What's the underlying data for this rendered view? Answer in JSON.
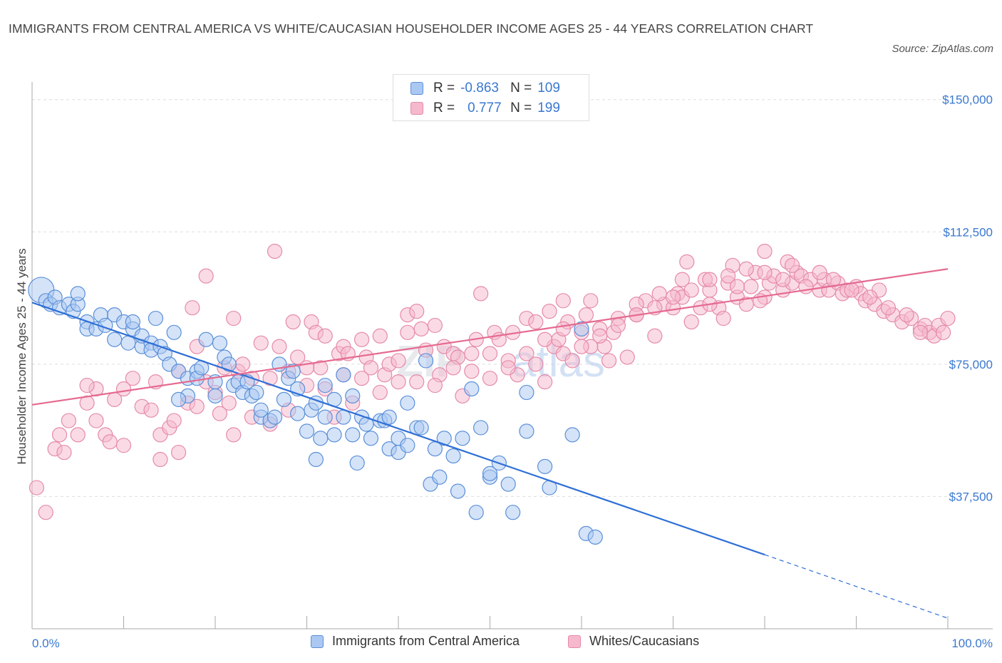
{
  "header": {
    "title": "IMMIGRANTS FROM CENTRAL AMERICA VS WHITE/CAUCASIAN HOUSEHOLDER INCOME AGES 25 - 44 YEARS CORRELATION CHART",
    "source": "Source: ZipAtlas.com"
  },
  "legend": {
    "r_label": "R =",
    "n_label": "N =",
    "blue": {
      "r": "-0.863",
      "n": "109"
    },
    "pink": {
      "r": "0.777",
      "n": "199"
    }
  },
  "watermark": {
    "zip": "ZIP",
    "atlas": "atlas"
  },
  "colors": {
    "blue_fill": "#aac8f2",
    "blue_stroke": "#5a8fd8",
    "blue_line": "#2f6fd6",
    "pink_fill": "#f6b8cc",
    "pink_stroke": "#e58aa8",
    "pink_line": "#e56a90",
    "tick_label": "#3a78d0",
    "grid": "#dddddd"
  },
  "chart_data": {
    "type": "scatter",
    "title": "IMMIGRANTS FROM CENTRAL AMERICA VS WHITE/CAUCASIAN HOUSEHOLDER INCOME AGES 25 - 44 YEARS CORRELATION CHART",
    "xlabel": "",
    "ylabel": "Householder Income Ages 25 - 44 years",
    "xlim": [
      0,
      100
    ],
    "ylim": [
      0,
      155000
    ],
    "x_tick_labels": [
      "0.0%",
      "100.0%"
    ],
    "y_ticks": [
      37500,
      75000,
      112500,
      150000
    ],
    "y_tick_labels": [
      "$37,500",
      "$75,000",
      "$112,500",
      "$150,000"
    ],
    "legend_position": "top-center",
    "series": [
      {
        "name": "Immigrants from Central America",
        "color": "#aac8f2",
        "r": -0.863,
        "n": 109,
        "trend": {
          "x0": 0,
          "y0": 92500,
          "x1": 80,
          "y1": 21000,
          "dash_to_x": 100,
          "dash_to_y": 3000
        },
        "points": [
          [
            1,
            96
          ],
          [
            1.5,
            93
          ],
          [
            2,
            92
          ],
          [
            2.5,
            94
          ],
          [
            3,
            91
          ],
          [
            4,
            92
          ],
          [
            4.5,
            90
          ],
          [
            5,
            92
          ],
          [
            5,
            95
          ],
          [
            6,
            87
          ],
          [
            6,
            85
          ],
          [
            7,
            85
          ],
          [
            7.5,
            89
          ],
          [
            8,
            86
          ],
          [
            9,
            89
          ],
          [
            9,
            82
          ],
          [
            10,
            87
          ],
          [
            10.5,
            81
          ],
          [
            11,
            85
          ],
          [
            11,
            87
          ],
          [
            12,
            80
          ],
          [
            12,
            83
          ],
          [
            13,
            81
          ],
          [
            13.5,
            88
          ],
          [
            13,
            79
          ],
          [
            14,
            80
          ],
          [
            14.5,
            78
          ],
          [
            15,
            75
          ],
          [
            15.5,
            84
          ],
          [
            16,
            73
          ],
          [
            17,
            71
          ],
          [
            17,
            66
          ],
          [
            18,
            73
          ],
          [
            18,
            71
          ],
          [
            18.5,
            74
          ],
          [
            19,
            82
          ],
          [
            20,
            70
          ],
          [
            20,
            66
          ],
          [
            20.5,
            81
          ],
          [
            21,
            77
          ],
          [
            21.5,
            75
          ],
          [
            22,
            69
          ],
          [
            22.5,
            70
          ],
          [
            23,
            67
          ],
          [
            23.5,
            70
          ],
          [
            24,
            66
          ],
          [
            24.5,
            67
          ],
          [
            25,
            60
          ],
          [
            25,
            62
          ],
          [
            26,
            59
          ],
          [
            26.5,
            60
          ],
          [
            27,
            75
          ],
          [
            28,
            71
          ],
          [
            28.5,
            73
          ],
          [
            29,
            68
          ],
          [
            29,
            61
          ],
          [
            30,
            56
          ],
          [
            30.5,
            62
          ],
          [
            31,
            64
          ],
          [
            31,
            48
          ],
          [
            32,
            60
          ],
          [
            32,
            69
          ],
          [
            33,
            65
          ],
          [
            33,
            55
          ],
          [
            34,
            72
          ],
          [
            34,
            60
          ],
          [
            35,
            66
          ],
          [
            35,
            55
          ],
          [
            35.5,
            47
          ],
          [
            36,
            60
          ],
          [
            36.5,
            58
          ],
          [
            37,
            54
          ],
          [
            38,
            59
          ],
          [
            38.5,
            59
          ],
          [
            39,
            51
          ],
          [
            39,
            60
          ],
          [
            40,
            54
          ],
          [
            40,
            50
          ],
          [
            41,
            64
          ],
          [
            41,
            52
          ],
          [
            42,
            57
          ],
          [
            42.5,
            57
          ],
          [
            43,
            76
          ],
          [
            43.5,
            41
          ],
          [
            44,
            51
          ],
          [
            44.5,
            43
          ],
          [
            45,
            54
          ],
          [
            46,
            49
          ],
          [
            46.5,
            39
          ],
          [
            47,
            54
          ],
          [
            48,
            68
          ],
          [
            48.5,
            33
          ],
          [
            50,
            43
          ],
          [
            50,
            44
          ],
          [
            51,
            47
          ],
          [
            52,
            41
          ],
          [
            52.5,
            33
          ],
          [
            54,
            67
          ],
          [
            54,
            56
          ],
          [
            56,
            46
          ],
          [
            56.5,
            40
          ],
          [
            59,
            55
          ],
          [
            60,
            85
          ],
          [
            60.5,
            27
          ],
          [
            61.5,
            26
          ],
          [
            31.5,
            54
          ],
          [
            27.5,
            65
          ],
          [
            16,
            65
          ],
          [
            49,
            57
          ]
        ]
      },
      {
        "name": "Whites/Caucasians",
        "color": "#f6b8cc",
        "r": 0.777,
        "n": 199,
        "trend": {
          "x0": 0,
          "y0": 63500,
          "x1": 100,
          "y1": 102000
        },
        "points": [
          [
            0.5,
            40
          ],
          [
            1.5,
            33
          ],
          [
            2.5,
            51
          ],
          [
            3,
            55
          ],
          [
            3.5,
            50
          ],
          [
            4,
            59
          ],
          [
            5,
            55
          ],
          [
            6,
            64
          ],
          [
            7,
            59
          ],
          [
            7,
            68
          ],
          [
            8,
            55
          ],
          [
            8.5,
            53
          ],
          [
            9,
            65
          ],
          [
            10,
            68
          ],
          [
            11,
            71
          ],
          [
            12,
            63
          ],
          [
            13,
            62
          ],
          [
            13.5,
            70
          ],
          [
            14,
            55
          ],
          [
            15,
            57
          ],
          [
            15.5,
            59
          ],
          [
            16,
            50
          ],
          [
            17,
            64
          ],
          [
            17.5,
            91
          ],
          [
            18,
            80
          ],
          [
            19,
            100
          ],
          [
            19,
            70
          ],
          [
            20,
            67
          ],
          [
            20.5,
            61
          ],
          [
            21,
            74
          ],
          [
            21.5,
            64
          ],
          [
            22,
            88
          ],
          [
            22.5,
            73
          ],
          [
            23,
            75
          ],
          [
            24,
            60
          ],
          [
            25,
            81
          ],
          [
            26,
            71
          ],
          [
            26.5,
            107
          ],
          [
            27,
            80
          ],
          [
            28,
            62
          ],
          [
            28.5,
            87
          ],
          [
            29,
            77
          ],
          [
            30,
            69
          ],
          [
            30.5,
            87
          ],
          [
            31,
            84
          ],
          [
            31.5,
            74
          ],
          [
            32,
            83
          ],
          [
            33,
            60
          ],
          [
            33.5,
            78
          ],
          [
            34,
            80
          ],
          [
            34.5,
            78
          ],
          [
            35,
            64
          ],
          [
            36,
            82
          ],
          [
            36.5,
            77
          ],
          [
            37,
            74
          ],
          [
            38,
            83
          ],
          [
            38.5,
            72
          ],
          [
            39,
            75
          ],
          [
            40,
            70
          ],
          [
            41,
            89
          ],
          [
            41,
            84
          ],
          [
            42,
            90
          ],
          [
            42.5,
            85
          ],
          [
            43,
            79
          ],
          [
            44,
            86
          ],
          [
            44.5,
            72
          ],
          [
            45,
            80
          ],
          [
            46,
            78
          ],
          [
            46.5,
            77
          ],
          [
            47,
            66
          ],
          [
            48,
            78
          ],
          [
            48.5,
            82
          ],
          [
            49,
            95
          ],
          [
            50,
            78
          ],
          [
            50.5,
            84
          ],
          [
            51,
            82
          ],
          [
            52,
            76
          ],
          [
            52.5,
            84
          ],
          [
            53,
            72
          ],
          [
            54,
            88
          ],
          [
            55,
            75
          ],
          [
            56,
            70
          ],
          [
            56.5,
            90
          ],
          [
            57,
            80
          ],
          [
            57.5,
            82
          ],
          [
            58,
            78
          ],
          [
            58.5,
            87
          ],
          [
            59,
            76
          ],
          [
            60,
            84
          ],
          [
            60.5,
            89
          ],
          [
            61,
            80
          ],
          [
            62,
            85
          ],
          [
            62.5,
            80
          ],
          [
            63,
            76
          ],
          [
            64,
            88
          ],
          [
            65,
            77
          ],
          [
            66,
            89
          ],
          [
            67,
            93
          ],
          [
            68,
            83
          ],
          [
            69,
            92
          ],
          [
            70,
            91
          ],
          [
            70.5,
            95
          ],
          [
            71,
            94
          ],
          [
            72,
            87
          ],
          [
            73,
            91
          ],
          [
            74,
            96
          ],
          [
            75,
            91
          ],
          [
            75.5,
            88
          ],
          [
            76,
            98
          ],
          [
            77,
            94
          ],
          [
            78,
            92
          ],
          [
            78.5,
            97
          ],
          [
            79,
            101
          ],
          [
            80,
            94
          ],
          [
            80.5,
            98
          ],
          [
            81,
            100
          ],
          [
            82,
            96
          ],
          [
            83,
            98
          ],
          [
            83.5,
            101
          ],
          [
            84,
            100
          ],
          [
            85,
            99
          ],
          [
            86,
            96
          ],
          [
            86.5,
            99
          ],
          [
            87,
            96
          ],
          [
            88,
            98
          ],
          [
            88.5,
            95
          ],
          [
            89,
            96
          ],
          [
            90,
            97
          ],
          [
            90.5,
            95
          ],
          [
            91,
            93
          ],
          [
            92,
            92
          ],
          [
            92.5,
            96
          ],
          [
            93,
            90
          ],
          [
            94,
            89
          ],
          [
            95,
            87
          ],
          [
            96,
            88
          ],
          [
            97,
            85
          ],
          [
            97.5,
            86
          ],
          [
            98,
            84
          ],
          [
            98.5,
            83
          ],
          [
            99,
            86
          ],
          [
            100,
            88
          ],
          [
            71.5,
            104
          ],
          [
            73.5,
            99
          ],
          [
            76.5,
            103
          ],
          [
            80,
            107
          ],
          [
            82.5,
            104
          ],
          [
            55,
            87
          ],
          [
            58,
            93
          ],
          [
            61,
            93
          ],
          [
            63.5,
            84
          ],
          [
            66,
            92
          ],
          [
            68.5,
            95
          ],
          [
            71,
            99
          ],
          [
            74,
            92
          ],
          [
            77,
            97
          ],
          [
            79.5,
            93
          ],
          [
            82,
            99
          ],
          [
            84.5,
            97
          ],
          [
            86,
            101
          ],
          [
            87.5,
            99
          ],
          [
            89.5,
            96
          ],
          [
            91.5,
            94
          ],
          [
            93.5,
            91
          ],
          [
            95.5,
            89
          ],
          [
            97,
            84
          ],
          [
            99.5,
            84
          ],
          [
            44,
            69
          ],
          [
            46,
            74
          ],
          [
            48,
            73
          ],
          [
            50,
            71
          ],
          [
            52,
            74
          ],
          [
            54,
            78
          ],
          [
            56,
            82
          ],
          [
            58,
            85
          ],
          [
            60,
            80
          ],
          [
            62,
            83
          ],
          [
            64,
            86
          ],
          [
            66,
            89
          ],
          [
            68,
            91
          ],
          [
            70,
            94
          ],
          [
            72,
            96
          ],
          [
            74,
            99
          ],
          [
            76,
            100
          ],
          [
            78,
            102
          ],
          [
            80,
            101
          ],
          [
            83,
            103
          ],
          [
            28,
            73
          ],
          [
            30,
            74
          ],
          [
            32,
            68
          ],
          [
            34,
            72
          ],
          [
            36,
            71
          ],
          [
            38,
            67
          ],
          [
            40,
            76
          ],
          [
            42,
            70
          ],
          [
            6,
            69
          ],
          [
            10,
            52
          ],
          [
            14,
            48
          ],
          [
            18,
            63
          ],
          [
            22,
            55
          ],
          [
            26,
            58
          ],
          [
            16,
            73
          ],
          [
            24,
            71
          ]
        ]
      }
    ]
  },
  "bottom_legend": {
    "blue_label": "Immigrants from Central America",
    "pink_label": "Whites/Caucasians"
  }
}
